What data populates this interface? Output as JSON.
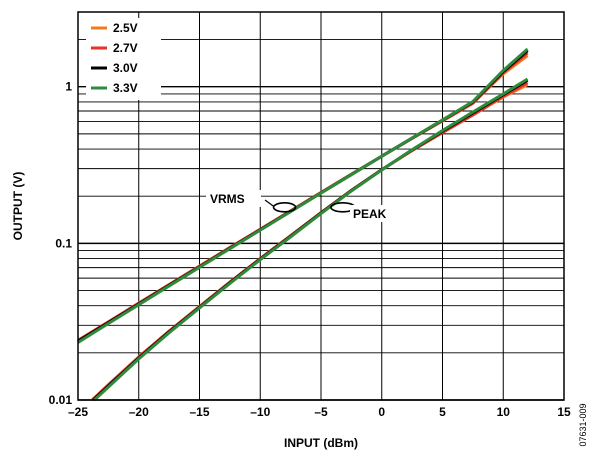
{
  "chart_data": {
    "type": "line",
    "xlabel": "INPUT (dBm)",
    "ylabel": "OUTPUT (V)",
    "figure_id": "07631-009",
    "xlim": [
      -25,
      15
    ],
    "ylim": [
      0.01,
      3
    ],
    "yscale": "log",
    "grid": true,
    "legend_position": "top-left",
    "x_ticks": [
      -25,
      -20,
      -15,
      -10,
      -5,
      0,
      5,
      10,
      15
    ],
    "x_tick_labels": [
      "–25",
      "–20",
      "–15",
      "–10",
      "–5",
      "0",
      "5",
      "10",
      "15"
    ],
    "y_ticks": [
      0.01,
      0.1,
      1
    ],
    "y_tick_labels": [
      "0.01",
      "0.1",
      "1"
    ],
    "x": [
      -25,
      -22.5,
      -20,
      -17.5,
      -15,
      -12.5,
      -10,
      -7.5,
      -5,
      -2.5,
      0,
      2.5,
      5,
      7.5,
      10,
      12
    ],
    "annotations": [
      {
        "text": "VRMS",
        "x": -8,
        "y": 0.17
      },
      {
        "text": "PEAK",
        "x": -3.2,
        "y": 0.17
      }
    ],
    "series": [
      {
        "name": "2.5V",
        "color": "#f47a20",
        "vrms": [
          0.024,
          0.0315,
          0.0415,
          0.0545,
          0.0715,
          0.094,
          0.123,
          0.161,
          0.211,
          0.276,
          0.36,
          0.468,
          0.606,
          0.785,
          1.21,
          1.58
        ],
        "peak": [
          0.0082,
          0.0125,
          0.0188,
          0.0275,
          0.0395,
          0.0565,
          0.08,
          0.112,
          0.157,
          0.218,
          0.295,
          0.392,
          0.51,
          0.66,
          0.86,
          1.03
        ]
      },
      {
        "name": "2.7V",
        "color": "#e8322a",
        "vrms": [
          0.024,
          0.0315,
          0.0415,
          0.0545,
          0.0715,
          0.094,
          0.123,
          0.161,
          0.211,
          0.276,
          0.36,
          0.468,
          0.606,
          0.785,
          1.23,
          1.64
        ],
        "peak": [
          0.0082,
          0.0125,
          0.0188,
          0.0275,
          0.0395,
          0.0565,
          0.08,
          0.112,
          0.157,
          0.218,
          0.295,
          0.392,
          0.51,
          0.66,
          0.87,
          1.06
        ]
      },
      {
        "name": "3.0V",
        "color": "#000000",
        "vrms": [
          0.0237,
          0.0312,
          0.041,
          0.054,
          0.0708,
          0.093,
          0.122,
          0.16,
          0.21,
          0.275,
          0.36,
          0.47,
          0.612,
          0.8,
          1.25,
          1.7
        ],
        "peak": [
          0.0081,
          0.0123,
          0.0185,
          0.0272,
          0.039,
          0.056,
          0.0793,
          0.111,
          0.156,
          0.217,
          0.295,
          0.395,
          0.52,
          0.68,
          0.89,
          1.1
        ]
      },
      {
        "name": "3.3V",
        "color": "#2e8b3c",
        "vrms": [
          0.0233,
          0.0308,
          0.0406,
          0.0535,
          0.0703,
          0.0925,
          0.1215,
          0.1595,
          0.2095,
          0.2745,
          0.3595,
          0.4705,
          0.614,
          0.805,
          1.27,
          1.74
        ],
        "peak": [
          0.008,
          0.0121,
          0.0183,
          0.0269,
          0.0387,
          0.0555,
          0.0787,
          0.11,
          0.155,
          0.216,
          0.294,
          0.396,
          0.525,
          0.69,
          0.9,
          1.12
        ]
      }
    ]
  }
}
